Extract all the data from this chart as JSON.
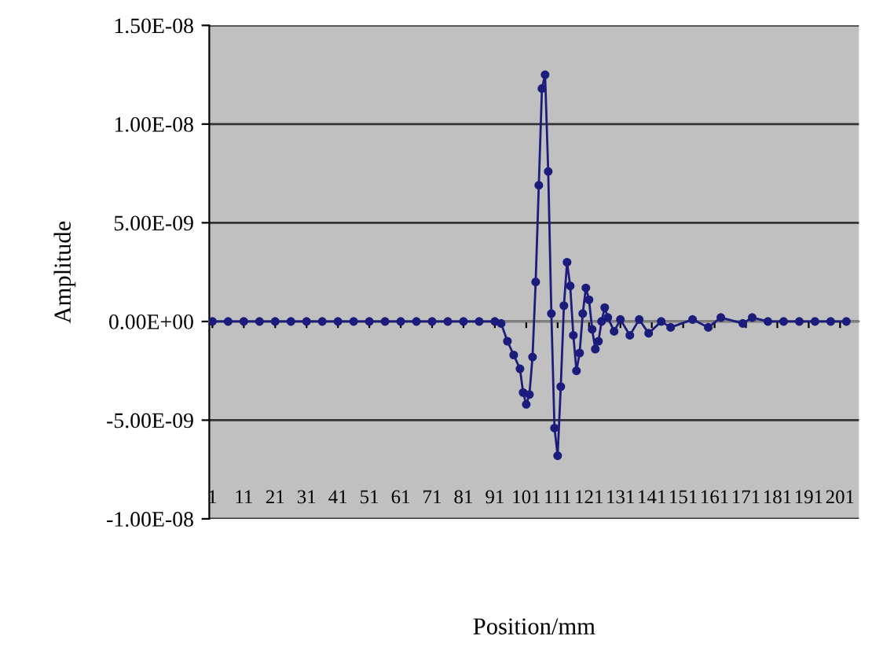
{
  "chart_data": {
    "type": "line",
    "xlabel": "Position/mm",
    "ylabel": "Amplitude",
    "xlim": [
      0,
      207
    ],
    "xticks": [
      1,
      11,
      21,
      31,
      41,
      51,
      61,
      71,
      81,
      91,
      101,
      111,
      121,
      131,
      141,
      151,
      161,
      171,
      181,
      191,
      201
    ],
    "ylim": [
      -1e-08,
      1.5e-08
    ],
    "yticks": [
      {
        "value": -1e-08,
        "label": "-1.00E-08"
      },
      {
        "value": -5e-09,
        "label": "-5.00E-09"
      },
      {
        "value": 0,
        "label": "0.00E+00"
      },
      {
        "value": 5e-09,
        "label": "5.00E-09"
      },
      {
        "value": 1e-08,
        "label": "1.00E-08"
      },
      {
        "value": 1.5e-08,
        "label": "1.50E-08"
      }
    ],
    "grid": "y",
    "marker": "circle",
    "line_style": "solid",
    "series": [
      {
        "color": "#1c1c7c",
        "x": [
          1,
          6,
          11,
          16,
          21,
          26,
          31,
          36,
          41,
          46,
          51,
          56,
          61,
          66,
          71,
          76,
          81,
          86,
          91,
          93,
          95,
          97,
          99,
          100,
          101,
          102,
          103,
          104,
          105,
          106,
          107,
          108,
          109,
          110,
          111,
          112,
          113,
          114,
          115,
          116,
          117,
          118,
          119,
          120,
          121,
          122,
          123,
          124,
          125,
          126,
          127,
          129,
          131,
          134,
          137,
          140,
          144,
          147,
          154,
          159,
          163,
          170,
          173,
          178,
          183,
          188,
          193,
          198,
          203
        ],
        "values": [
          0,
          0,
          0,
          0,
          0,
          0,
          0,
          0,
          0,
          0,
          0,
          0,
          0,
          0,
          0,
          0,
          0,
          0,
          0,
          -1e-10,
          -1e-09,
          -1.7e-09,
          -2.4e-09,
          -3.6e-09,
          -4.2e-09,
          -3.7e-09,
          -1.8e-09,
          2e-09,
          6.9e-09,
          1.18e-08,
          1.25e-08,
          7.6e-09,
          4e-10,
          -5.4e-09,
          -6.8e-09,
          -3.3e-09,
          8e-10,
          3e-09,
          1.8e-09,
          -7e-10,
          -2.5e-09,
          -1.6e-09,
          4e-10,
          1.7e-09,
          1.1e-09,
          -4e-10,
          -1.4e-09,
          -1e-09,
          0,
          7e-10,
          2e-10,
          -5e-10,
          1e-10,
          -7e-10,
          1e-10,
          -6e-10,
          0,
          -3e-10,
          1e-10,
          -3e-10,
          2e-10,
          -1e-10,
          2e-10,
          0,
          0,
          0,
          0,
          0,
          0
        ]
      }
    ]
  }
}
